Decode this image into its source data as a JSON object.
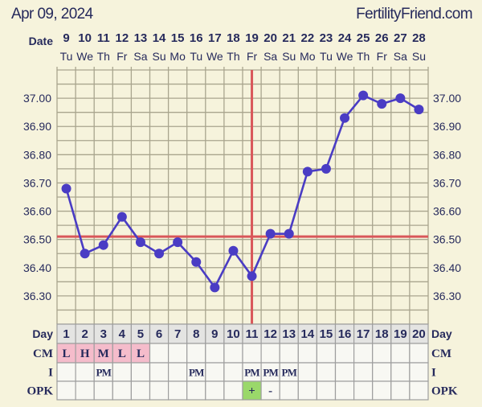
{
  "header": {
    "date": "Apr 09, 2024",
    "site": "FertilityFriend.com"
  },
  "labels": {
    "date": "Date",
    "day": "Day",
    "cm": "CM",
    "i": "I",
    "opk": "OPK"
  },
  "colors": {
    "background": "#f6f3dc",
    "grid": "#a9a58e",
    "temp_line": "#4a3cc4",
    "coverline": "#d9575a",
    "cm_fill": "#f5bccb",
    "opk_positive": "#9ad86a",
    "text": "#262a5c"
  },
  "chart_data": {
    "type": "line",
    "title": "",
    "xlabel": "",
    "ylabel": "",
    "ylim": [
      36.2,
      37.1
    ],
    "grid": true,
    "yticks": [
      "37.00",
      "36.90",
      "36.80",
      "36.70",
      "36.60",
      "36.50",
      "36.40",
      "36.30"
    ],
    "dates": [
      "9",
      "10",
      "11",
      "12",
      "13",
      "14",
      "15",
      "16",
      "17",
      "18",
      "19",
      "20",
      "21",
      "22",
      "23",
      "24",
      "25",
      "26",
      "27",
      "28"
    ],
    "weekdays": [
      "Tu",
      "We",
      "Th",
      "Fr",
      "Sa",
      "Su",
      "Mo",
      "Tu",
      "We",
      "Th",
      "Fr",
      "Sa",
      "Su",
      "Mo",
      "Tu",
      "We",
      "Th",
      "Fr",
      "Sa",
      "Su"
    ],
    "cycle_days": [
      "1",
      "2",
      "3",
      "4",
      "5",
      "6",
      "7",
      "8",
      "9",
      "10",
      "11",
      "12",
      "13",
      "14",
      "15",
      "16",
      "17",
      "18",
      "19",
      "20"
    ],
    "temperatures": [
      36.68,
      36.45,
      36.48,
      36.58,
      36.49,
      36.45,
      36.49,
      36.42,
      36.33,
      36.46,
      36.37,
      36.52,
      36.52,
      36.74,
      36.75,
      36.93,
      37.01,
      36.98,
      37.0,
      36.96
    ],
    "coverline": 36.51,
    "ovulation_day": 11,
    "cm": [
      "L",
      "H",
      "M",
      "L",
      "L",
      "",
      "",
      "",
      "",
      "",
      "",
      "",
      "",
      "",
      "",
      "",
      "",
      "",
      "",
      ""
    ],
    "intercourse": [
      "",
      "",
      "PM",
      "",
      "",
      "",
      "",
      "PM",
      "",
      "",
      "PM",
      "PM",
      "PM",
      "",
      "",
      "",
      "",
      "",
      "",
      ""
    ],
    "opk": [
      "",
      "",
      "",
      "",
      "",
      "",
      "",
      "",
      "",
      "",
      "+",
      "-",
      "",
      "",
      "",
      "",
      "",
      "",
      "",
      ""
    ]
  }
}
